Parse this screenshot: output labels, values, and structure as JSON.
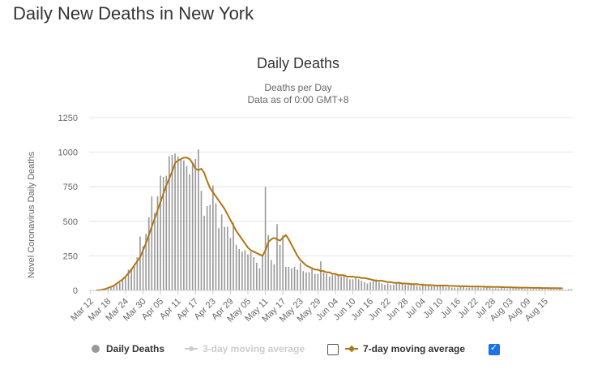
{
  "page_title": "Daily New Deaths in New York",
  "legend": {
    "daily": "Daily Deaths",
    "ma3": "3-day moving average",
    "ma7": "7-day moving average",
    "ma3_checked": false,
    "ma7_checked": true
  },
  "chart_data": {
    "type": "bar",
    "title": "Daily Deaths",
    "subtitle_lines": [
      "Deaths per Day",
      "Data as of 0:00 GMT+8"
    ],
    "ylabel": "Novel Coronavirus Daily Deaths",
    "ylim": [
      0,
      1250
    ],
    "yticks": [
      0,
      250,
      500,
      750,
      1000,
      1250
    ],
    "grid": true,
    "legend_position": "bottom",
    "colors": {
      "bars": "#999999",
      "ma7": "#b07613",
      "ma3_disabled": "#cccccc"
    },
    "x_tick_labels": [
      "Mar 12",
      "Mar 18",
      "Mar 24",
      "Mar 30",
      "Apr 05",
      "Apr 11",
      "Apr 17",
      "Apr 23",
      "Apr 29",
      "May 05",
      "May 11",
      "May 17",
      "May 23",
      "May 29",
      "Jun 04",
      "Jun 10",
      "Jun 16",
      "Jun 22",
      "Jun 28",
      "Jul 04",
      "Jul 10",
      "Jul 16",
      "Jul 22",
      "Jul 28",
      "Aug 03",
      "Aug 09",
      "Aug 15"
    ],
    "series": [
      {
        "name": "Daily Deaths",
        "type": "bar",
        "start_date": "Mar 12",
        "values": [
          0,
          0,
          0,
          0,
          1,
          3,
          10,
          20,
          30,
          40,
          55,
          80,
          100,
          150,
          160,
          190,
          240,
          390,
          320,
          410,
          530,
          680,
          560,
          680,
          830,
          820,
          830,
          970,
          980,
          990,
          970,
          950,
          940,
          900,
          840,
          920,
          950,
          1020,
          720,
          540,
          610,
          620,
          760,
          630,
          450,
          550,
          460,
          460,
          380,
          490,
          330,
          300,
          280,
          290,
          260,
          280,
          240,
          200,
          160,
          250,
          750,
          400,
          220,
          190,
          480,
          330,
          400,
          170,
          170,
          160,
          170,
          150,
          200,
          140,
          130,
          130,
          160,
          120,
          120,
          210,
          130,
          120,
          100,
          110,
          110,
          110,
          100,
          110,
          90,
          80,
          80,
          90,
          80,
          70,
          60,
          50,
          60,
          70,
          80,
          60,
          50,
          40,
          50,
          40,
          40,
          50,
          60,
          50,
          40,
          40,
          45,
          40,
          35,
          30,
          50,
          40,
          40,
          30,
          30,
          30,
          30,
          30,
          25,
          25,
          20,
          20,
          20,
          25,
          25,
          20,
          20,
          20,
          20,
          20,
          15,
          20,
          25,
          20,
          15,
          15,
          15,
          20,
          15,
          10,
          15,
          15,
          15,
          15,
          15,
          10,
          10,
          10,
          10,
          10,
          15,
          10,
          10,
          10,
          10,
          10,
          10,
          10,
          10,
          5,
          10,
          10
        ]
      },
      {
        "name": "7-day moving average",
        "type": "line",
        "start_date": "Mar 14",
        "values": [
          1,
          2,
          5,
          10,
          18,
          25,
          35,
          50,
          65,
          80,
          100,
          125,
          150,
          180,
          210,
          240,
          290,
          340,
          400,
          460,
          520,
          580,
          640,
          700,
          760,
          810,
          860,
          920,
          940,
          950,
          960,
          960,
          950,
          920,
          880,
          870,
          880,
          850,
          790,
          740,
          710,
          680,
          650,
          620,
          590,
          550,
          510,
          470,
          430,
          400,
          370,
          340,
          310,
          290,
          280,
          270,
          260,
          250,
          290,
          350,
          370,
          380,
          370,
          360,
          380,
          400,
          370,
          330,
          290,
          250,
          220,
          200,
          180,
          170,
          160,
          150,
          150,
          140,
          140,
          130,
          130,
          120,
          120,
          110,
          110,
          110,
          100,
          100,
          100,
          95,
          95,
          90,
          90,
          85,
          80,
          75,
          70,
          70,
          70,
          65,
          60,
          60,
          55,
          55,
          55,
          50,
          50,
          48,
          45,
          45,
          45,
          42,
          40,
          40,
          38,
          38,
          36,
          35,
          35,
          35,
          35,
          33,
          32,
          32,
          31,
          30,
          30,
          30,
          29,
          28,
          28,
          28,
          27,
          27,
          26,
          26,
          25,
          25,
          25,
          24,
          23,
          22,
          22,
          21,
          21,
          20,
          20,
          20,
          19,
          19,
          18,
          18,
          18,
          17,
          17,
          17,
          16,
          16,
          16,
          15,
          15
        ]
      }
    ]
  }
}
